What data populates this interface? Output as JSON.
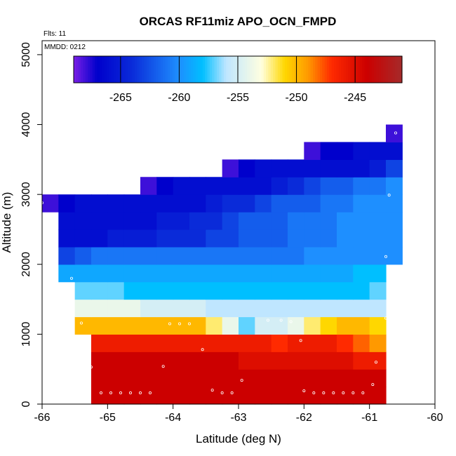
{
  "chart_data": {
    "type": "heatmap",
    "title": "ORCAS RF11miz APO_OCN_FMPD",
    "xlabel": "Latitude (deg N)",
    "ylabel": "Altitude (m)",
    "xlim": [
      -66,
      -60
    ],
    "ylim": [
      0,
      5200
    ],
    "xticks": [
      "-66",
      "-65",
      "-64",
      "-63",
      "-62",
      "-61",
      "-60"
    ],
    "yticks": [
      "0",
      "1000",
      "2000",
      "3000",
      "4000",
      "5000"
    ],
    "annotations": {
      "flights": "Flts: 11",
      "date": "MMDD: 0212"
    },
    "colorbar": {
      "min": -269,
      "max": -241,
      "ticks": [
        "-265",
        "-260",
        "-255",
        "-250",
        "-245"
      ],
      "colors": [
        "#7a1fe6",
        "#0000cc",
        "#0a2bd9",
        "#1e8fff",
        "#00bfff",
        "#bfe6ff",
        "#ffffe0",
        "#ffd700",
        "#ff9900",
        "#ff2a00",
        "#cc0000",
        "#a52a2a"
      ],
      "color_stops": [
        -269,
        -267,
        -264,
        -260,
        -258,
        -256,
        -253,
        -251,
        -249,
        -247,
        -244,
        -241
      ]
    },
    "grid": {
      "x_start": -66,
      "dx": 0.25,
      "y_start": 0,
      "dy": 250
    },
    "rows": [
      {
        "alt": 125,
        "x0": -65.25,
        "x1": -60.75,
        "values": [
          -244,
          -244,
          -244,
          -244,
          -244,
          -244,
          -244,
          -244,
          -244,
          -244,
          -244,
          -244,
          -244,
          -244,
          -244,
          -244,
          -244,
          -244
        ]
      },
      {
        "alt": 375,
        "x0": -65.25,
        "x1": -60.75,
        "values": [
          -244,
          -244,
          -244,
          -244,
          -244,
          -244,
          -244,
          -244,
          -244,
          -244,
          -244,
          -244,
          -244,
          -244,
          -244,
          -244,
          -244,
          -244
        ]
      },
      {
        "alt": 625,
        "x0": -65.25,
        "x1": -60.75,
        "values": [
          -244,
          -244,
          -244,
          -244,
          -244,
          -244,
          -244,
          -244,
          -244,
          -245,
          -245,
          -245,
          -245,
          -245,
          -245,
          -245,
          -246,
          -246
        ]
      },
      {
        "alt": 875,
        "x0": -65.25,
        "x1": -60.75,
        "values": [
          -246,
          -246,
          -246,
          -246,
          -246,
          -246,
          -246,
          -246,
          -246,
          -246,
          -246,
          -247,
          -246,
          -246,
          -246,
          -247,
          -248,
          -249
        ]
      },
      {
        "alt": 1125,
        "x0": -65.5,
        "x1": -60.75,
        "values": [
          -250,
          -250,
          -250,
          -250,
          -250,
          -250,
          -250,
          -250,
          -252,
          -254,
          -257,
          -255,
          -255,
          -254,
          -252,
          -251,
          -250,
          -250,
          -251
        ]
      },
      {
        "alt": 1375,
        "x0": -65.5,
        "x1": -60.75,
        "values": [
          -254,
          -254,
          -254,
          -254,
          -255,
          -255,
          -255,
          -255,
          -256,
          -256,
          -256,
          -256,
          -256,
          -256,
          -256,
          -256,
          -256,
          -256,
          -256
        ]
      },
      {
        "alt": 1625,
        "x0": -65.5,
        "x1": -60.75,
        "values": [
          -257,
          -257,
          -257,
          -258,
          -258,
          -258,
          -258,
          -258,
          -258,
          -258,
          -258,
          -258,
          -258,
          -258,
          -258,
          -258,
          -258,
          -258,
          -257
        ]
      },
      {
        "alt": 1875,
        "x0": -65.75,
        "x1": -60.75,
        "values": [
          -259,
          -259,
          -259,
          -259,
          -259,
          -259,
          -259,
          -259,
          -259,
          -259,
          -259,
          -259,
          -259,
          -259,
          -259,
          -259,
          -259,
          -259,
          -258,
          -258
        ]
      },
      {
        "alt": 2125,
        "x0": -65.75,
        "x1": -60.5,
        "values": [
          -263,
          -262,
          -261,
          -261,
          -261,
          -261,
          -261,
          -261,
          -261,
          -261,
          -261,
          -261,
          -261,
          -261,
          -261,
          -260,
          -260,
          -260,
          -260,
          -260,
          -260
        ]
      },
      {
        "alt": 2375,
        "x0": -65.75,
        "x1": -60.5,
        "values": [
          -266,
          -266,
          -266,
          -265,
          -265,
          -265,
          -264,
          -264,
          -264,
          -263,
          -263,
          -262,
          -262,
          -262,
          -261,
          -261,
          -261,
          -260,
          -260,
          -260,
          -260
        ]
      },
      {
        "alt": 2625,
        "x0": -65.75,
        "x1": -60.5,
        "values": [
          -266,
          -266,
          -266,
          -266,
          -266,
          -266,
          -265,
          -265,
          -264,
          -264,
          -263,
          -262,
          -262,
          -262,
          -261,
          -261,
          -261,
          -260,
          -260,
          -260,
          -260
        ]
      },
      {
        "alt": 2875,
        "x0": -66,
        "x1": -60.5,
        "values": [
          -268,
          -267,
          -266,
          -266,
          -266,
          -266,
          -266,
          -266,
          -266,
          -266,
          -265,
          -264,
          -264,
          -263,
          -262,
          -262,
          -262,
          -261,
          -261,
          -260,
          -260,
          -260
        ]
      },
      {
        "alt": 3125,
        "x0": -64.5,
        "x1": -60.5,
        "values": [
          -268,
          -267,
          -266,
          -266,
          -266,
          -266,
          -266,
          -266,
          -265,
          -264,
          -263,
          -262,
          -262,
          -261,
          -261,
          -260
        ]
      },
      {
        "alt": 3375,
        "x0": -63.25,
        "x1": -60.5,
        "values": [
          -268,
          -267,
          -266,
          -266,
          -266,
          -266,
          -266,
          -266,
          -266,
          -265,
          -263
        ]
      },
      {
        "alt": 3625,
        "x0": -62,
        "x1": -60.5,
        "values": [
          -268,
          -267,
          -267,
          -266,
          -266,
          -266
        ]
      },
      {
        "alt": 3875,
        "x0": -60.75,
        "x1": -60.5,
        "values": [
          -268
        ]
      }
    ],
    "points": [
      [
        -65.1,
        160
      ],
      [
        -64.95,
        160
      ],
      [
        -64.8,
        160
      ],
      [
        -64.65,
        160
      ],
      [
        -64.5,
        160
      ],
      [
        -64.35,
        160
      ],
      [
        -63.4,
        200
      ],
      [
        -63.25,
        160
      ],
      [
        -63.1,
        160
      ],
      [
        -62.95,
        340
      ],
      [
        -62.0,
        190
      ],
      [
        -61.85,
        160
      ],
      [
        -61.7,
        160
      ],
      [
        -61.55,
        160
      ],
      [
        -61.4,
        160
      ],
      [
        -61.25,
        160
      ],
      [
        -61.1,
        160
      ],
      [
        -60.95,
        280
      ],
      [
        -65.25,
        530
      ],
      [
        -64.15,
        540
      ],
      [
        -60.9,
        600
      ],
      [
        -63.55,
        780
      ],
      [
        -62.05,
        910
      ],
      [
        -65.4,
        1160
      ],
      [
        -64.05,
        1150
      ],
      [
        -63.9,
        1150
      ],
      [
        -63.75,
        1150
      ],
      [
        -62.55,
        1200
      ],
      [
        -62.35,
        1200
      ],
      [
        -62.2,
        1180
      ],
      [
        -60.75,
        1230
      ],
      [
        -65.55,
        1800
      ],
      [
        -60.75,
        2110
      ],
      [
        -65.8,
        2430
      ],
      [
        -66.0,
        2880
      ],
      [
        -60.7,
        2990
      ],
      [
        -60.6,
        3880
      ]
    ]
  }
}
